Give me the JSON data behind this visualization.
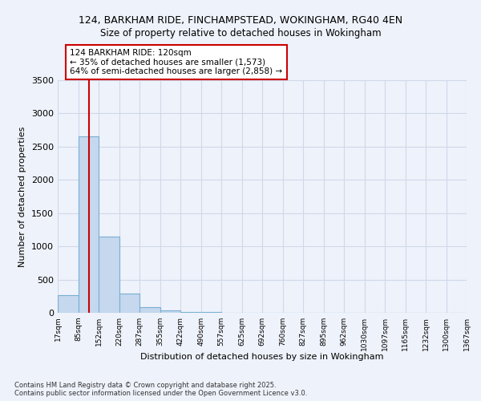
{
  "title_line1": "124, BARKHAM RIDE, FINCHAMPSTEAD, WOKINGHAM, RG40 4EN",
  "title_line2": "Size of property relative to detached houses in Wokingham",
  "xlabel": "Distribution of detached houses by size in Wokingham",
  "ylabel": "Number of detached properties",
  "bar_color": "#c5d8ee",
  "bar_edge_color": "#7aafd4",
  "background_color": "#eef2fa",
  "grid_color": "#d0d8e8",
  "bin_edges": [
    17,
    85,
    152,
    220,
    287,
    355,
    422,
    490,
    557,
    625,
    692,
    760,
    827,
    895,
    962,
    1030,
    1097,
    1165,
    1232,
    1300,
    1367
  ],
  "bar_heights": [
    270,
    2650,
    1150,
    290,
    80,
    35,
    15,
    7,
    4,
    2,
    2,
    1,
    1,
    1,
    1,
    1,
    0,
    0,
    0,
    0
  ],
  "property_size": 120,
  "red_line_color": "#cc0000",
  "annotation_text": "124 BARKHAM RIDE: 120sqm\n← 35% of detached houses are smaller (1,573)\n64% of semi-detached houses are larger (2,858) →",
  "annotation_box_color": "#ffffff",
  "annotation_box_edge": "#cc0000",
  "ylim": [
    0,
    3500
  ],
  "yticks": [
    0,
    500,
    1000,
    1500,
    2000,
    2500,
    3000,
    3500
  ],
  "footnote": "Contains HM Land Registry data © Crown copyright and database right 2025.\nContains public sector information licensed under the Open Government Licence v3.0.",
  "tick_labels": [
    "17sqm",
    "85sqm",
    "152sqm",
    "220sqm",
    "287sqm",
    "355sqm",
    "422sqm",
    "490sqm",
    "557sqm",
    "625sqm",
    "692sqm",
    "760sqm",
    "827sqm",
    "895sqm",
    "962sqm",
    "1030sqm",
    "1097sqm",
    "1165sqm",
    "1232sqm",
    "1300sqm",
    "1367sqm"
  ]
}
